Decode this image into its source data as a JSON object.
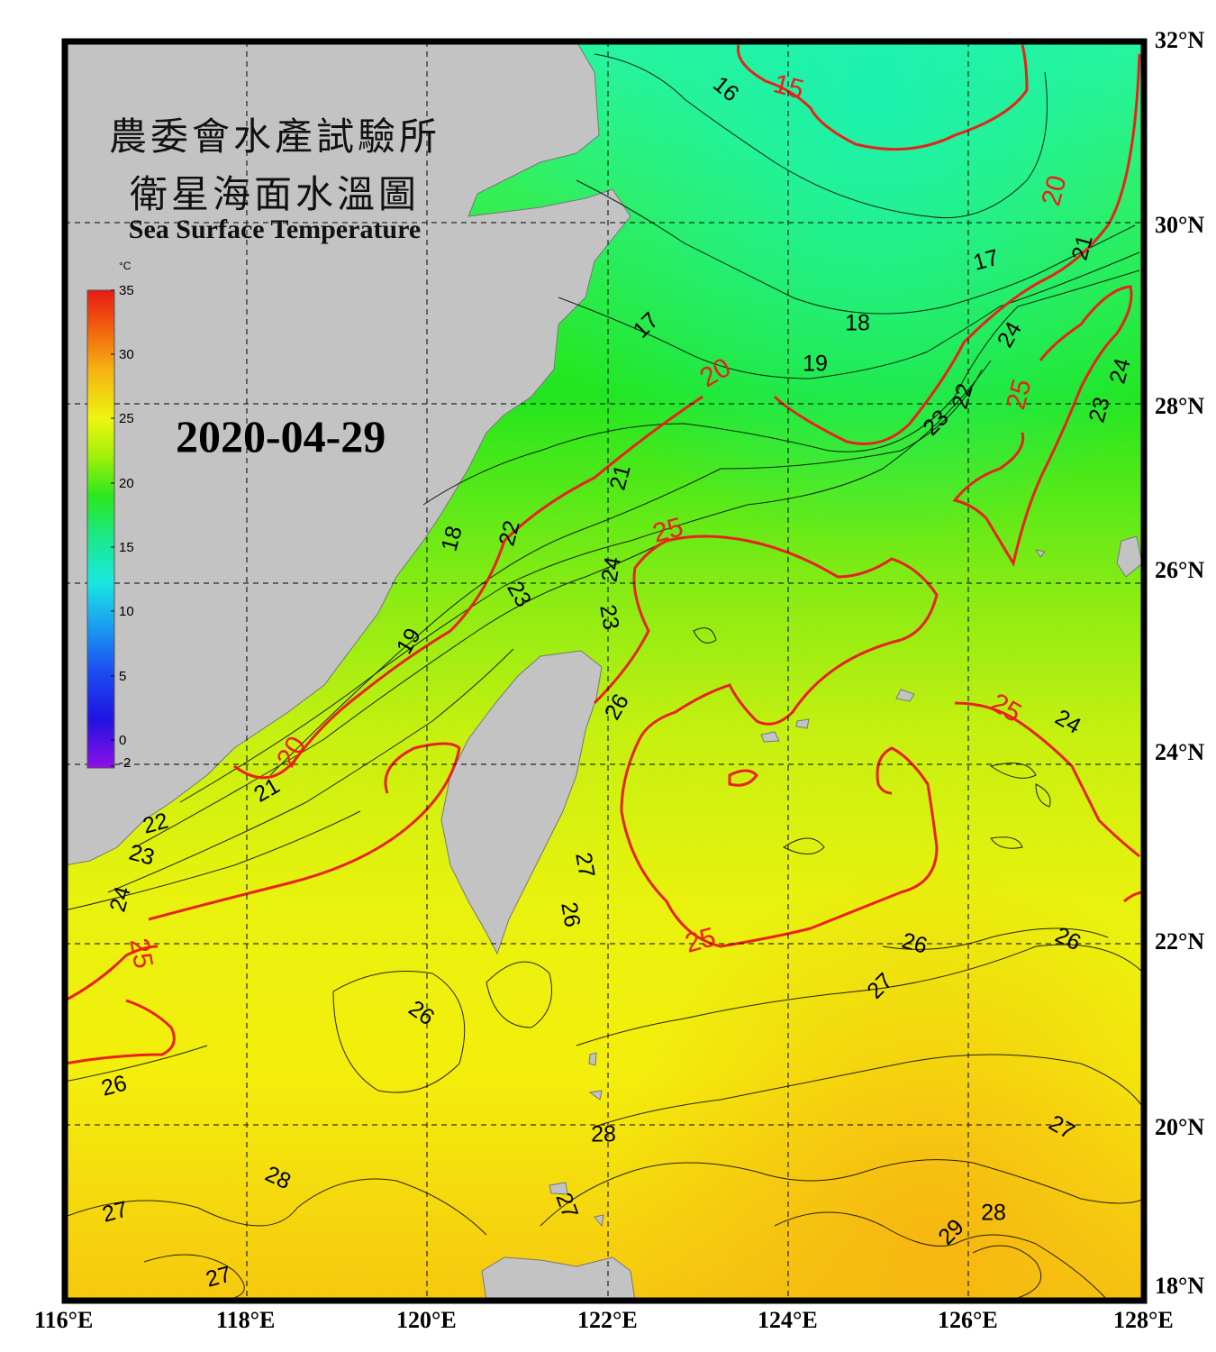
{
  "header": {
    "title_line1": "農委會水產試驗所",
    "title_line2": "衛星海面水溫圖",
    "title_en": "Sea Surface Temperature",
    "date": "2020-04-29"
  },
  "colorbar": {
    "unit": "°C",
    "ticks": [
      "35",
      "30",
      "25",
      "20",
      "15",
      "10",
      "5",
      "0",
      "-2"
    ],
    "colors": [
      "#e81a14",
      "#f36a0e",
      "#f6b512",
      "#eef50f",
      "#9ef00b",
      "#2be81c",
      "#1ae88c",
      "#1ae8e0",
      "#1aa0f0",
      "#1b4cf0",
      "#2112e0",
      "#5b10e0",
      "#8e10e8"
    ]
  },
  "axes": {
    "lon_labels": [
      "116°E",
      "118°E",
      "120°E",
      "122°E",
      "124°E",
      "126°E",
      "128°E"
    ],
    "lat_labels": [
      "32°N",
      "30°N",
      "28°N",
      "26°N",
      "24°N",
      "22°N",
      "20°N",
      "18°N"
    ]
  },
  "isotherm_labels": [
    {
      "text": "15",
      "major": true
    },
    {
      "text": "16",
      "major": false
    },
    {
      "text": "20",
      "major": true
    },
    {
      "text": "17",
      "major": false
    },
    {
      "text": "21",
      "major": false
    },
    {
      "text": "18",
      "major": false
    },
    {
      "text": "19",
      "major": false
    },
    {
      "text": "17",
      "major": false
    },
    {
      "text": "20",
      "major": true
    },
    {
      "text": "24",
      "major": false
    },
    {
      "text": "25",
      "major": true
    },
    {
      "text": "22",
      "major": false
    },
    {
      "text": "23",
      "major": false
    },
    {
      "text": "23",
      "major": false
    },
    {
      "text": "24",
      "major": false
    },
    {
      "text": "21",
      "major": false
    },
    {
      "text": "25",
      "major": true
    },
    {
      "text": "22",
      "major": false
    },
    {
      "text": "18",
      "major": false
    },
    {
      "text": "24",
      "major": false
    },
    {
      "text": "23",
      "major": false
    },
    {
      "text": "23",
      "major": false
    },
    {
      "text": "19",
      "major": false
    },
    {
      "text": "26",
      "major": false
    },
    {
      "text": "25",
      "major": true
    },
    {
      "text": "24",
      "major": false
    },
    {
      "text": "20",
      "major": true
    },
    {
      "text": "21",
      "major": false
    },
    {
      "text": "22",
      "major": false
    },
    {
      "text": "23",
      "major": false
    },
    {
      "text": "24",
      "major": false
    },
    {
      "text": "25",
      "major": true
    },
    {
      "text": "27",
      "major": false
    },
    {
      "text": "26",
      "major": false
    },
    {
      "text": "25",
      "major": true
    },
    {
      "text": "26",
      "major": false
    },
    {
      "text": "26",
      "major": false
    },
    {
      "text": "27",
      "major": false
    },
    {
      "text": "26",
      "major": false
    },
    {
      "text": "26",
      "major": false
    },
    {
      "text": "28",
      "major": false
    },
    {
      "text": "27",
      "major": false
    },
    {
      "text": "28",
      "major": false
    },
    {
      "text": "27",
      "major": false
    },
    {
      "text": "27",
      "major": false
    },
    {
      "text": "29",
      "major": false
    },
    {
      "text": "28",
      "major": false
    },
    {
      "text": "27",
      "major": false
    }
  ]
}
